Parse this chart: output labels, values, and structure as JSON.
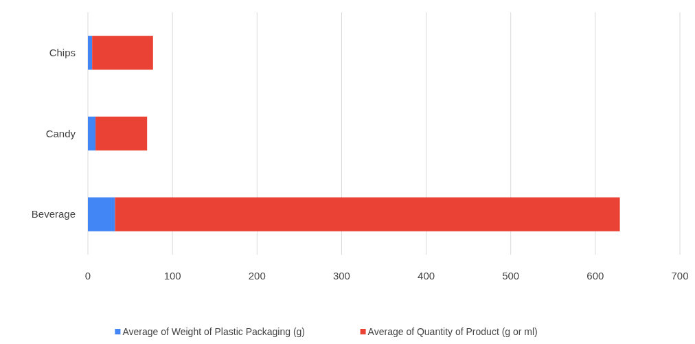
{
  "chart_data": {
    "type": "bar",
    "orientation": "horizontal",
    "stacked": true,
    "categories": [
      "Chips",
      "Candy",
      "Beverage"
    ],
    "series": [
      {
        "name": "Average of Weight of Plastic Packaging (g)",
        "color": "#4285f4",
        "values": [
          5,
          9,
          32
        ]
      },
      {
        "name": "Average of Quantity of Product (g or ml)",
        "color": "#ea4335",
        "values": [
          72,
          61,
          597
        ]
      }
    ],
    "xlim": [
      0,
      700
    ],
    "xticks": [
      0,
      100,
      200,
      300,
      400,
      500,
      600,
      700
    ],
    "grid": "x",
    "legend": "bottom"
  }
}
